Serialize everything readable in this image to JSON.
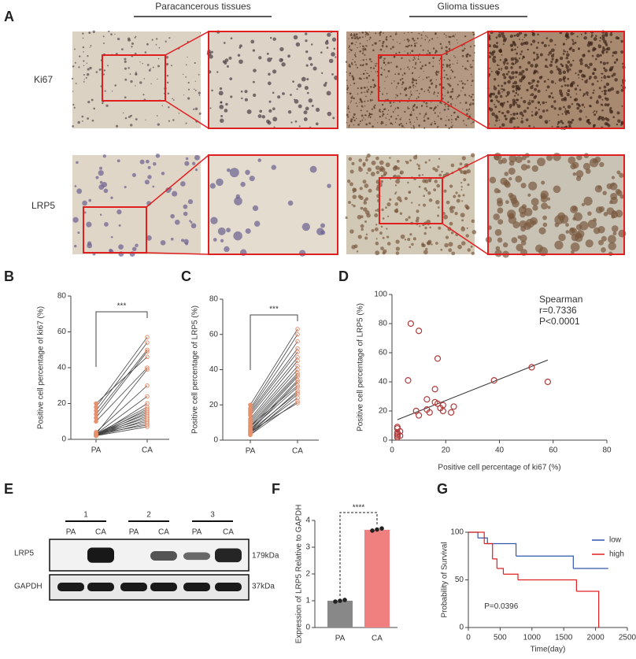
{
  "panel_labels": [
    "A",
    "B",
    "C",
    "D",
    "E",
    "F",
    "G"
  ],
  "panel_a": {
    "columns": [
      "Paracancerous tissues",
      "Glioma tissues"
    ],
    "rows": [
      "Ki67",
      "LRP5"
    ]
  },
  "panel_e": {
    "groups": [
      "1",
      "2",
      "3"
    ],
    "lanes": [
      "PA",
      "CA",
      "PA",
      "CA",
      "PA",
      "CA"
    ],
    "proteins": [
      "LRP5",
      "GAPDH"
    ],
    "sizes": [
      "179kDa",
      "37kDa"
    ]
  },
  "chart_data": [
    {
      "type": "paired",
      "categories": [
        "PA",
        "CA"
      ],
      "ylabel": "Positive cell percentage of ki67 (%)",
      "ylim": [
        0,
        80
      ],
      "yticks": [
        0,
        20,
        40,
        60,
        80
      ],
      "annotation": "***",
      "color": "#e8906c",
      "line_color": "#444444",
      "pairs": [
        [
          18,
          57
        ],
        [
          16,
          54
        ],
        [
          14,
          50
        ],
        [
          12,
          49
        ],
        [
          20,
          46
        ],
        [
          10,
          40
        ],
        [
          3,
          39
        ],
        [
          4,
          30
        ],
        [
          3,
          24
        ],
        [
          2,
          20
        ],
        [
          3,
          18
        ],
        [
          2,
          17
        ],
        [
          3,
          16
        ],
        [
          2,
          15
        ],
        [
          3,
          14
        ],
        [
          2,
          13
        ],
        [
          3,
          12
        ],
        [
          2,
          11
        ],
        [
          3,
          10
        ],
        [
          2,
          9
        ],
        [
          3,
          8
        ],
        [
          2,
          7
        ]
      ]
    },
    {
      "type": "paired",
      "categories": [
        "PA",
        "CA"
      ],
      "ylabel": "Positive cell percentage of LRP5 (%)",
      "ylim": [
        0,
        80
      ],
      "yticks": [
        0,
        20,
        40,
        60,
        80
      ],
      "annotation": "***",
      "color": "#e8906c",
      "line_color": "#444444",
      "pairs": [
        [
          20,
          63
        ],
        [
          18,
          60
        ],
        [
          17,
          56
        ],
        [
          16,
          52
        ],
        [
          15,
          50
        ],
        [
          14,
          47
        ],
        [
          12,
          45
        ],
        [
          11,
          42
        ],
        [
          10,
          40
        ],
        [
          9,
          38
        ],
        [
          8,
          37
        ],
        [
          7,
          36
        ],
        [
          6,
          34
        ],
        [
          5,
          33
        ],
        [
          8,
          31
        ],
        [
          6,
          30
        ],
        [
          4,
          28
        ],
        [
          5,
          27
        ],
        [
          3,
          26
        ],
        [
          4,
          24
        ],
        [
          3,
          22
        ],
        [
          5,
          21
        ]
      ]
    },
    {
      "type": "scatter",
      "xlabel": "Positive cell percentage of ki67 (%)",
      "ylabel": "Positive cell percentage of LRP5 (%)",
      "xlim": [
        0,
        80
      ],
      "xticks": [
        0,
        20,
        40,
        60,
        80
      ],
      "ylim": [
        0,
        100
      ],
      "yticks": [
        0,
        20,
        40,
        60,
        80,
        100
      ],
      "color": "#b03a3a",
      "annotations": [
        "Spearman",
        "r=0.7336",
        "P<0.0001"
      ],
      "x": [
        7,
        10,
        6,
        17,
        16,
        9,
        10,
        13,
        13,
        14,
        16,
        17,
        18,
        19,
        19,
        22,
        23,
        38,
        52,
        58,
        2,
        2,
        2,
        2,
        3,
        2,
        3,
        2
      ],
      "values": [
        80,
        75,
        41,
        56,
        35,
        20,
        17,
        21,
        28,
        19,
        26,
        25,
        22,
        24,
        20,
        19,
        23,
        41,
        50,
        40,
        2,
        3,
        4,
        5,
        6,
        8,
        3,
        9
      ],
      "fit": {
        "x": [
          2,
          58
        ],
        "values": [
          14,
          55
        ]
      }
    },
    {
      "type": "bar",
      "categories": [
        "PA",
        "CA"
      ],
      "values": [
        1.0,
        3.65
      ],
      "colors": [
        "#888888",
        "#f08080"
      ],
      "ylabel": "Expression of LRP5 Relative to GAPDH",
      "ylim": [
        0,
        4
      ],
      "yticks": [
        0,
        1,
        2,
        3,
        4
      ],
      "annotation": "****",
      "points": [
        [
          0.97,
          1.0,
          1.03
        ],
        [
          3.62,
          3.66,
          3.7
        ]
      ]
    },
    {
      "type": "survival",
      "xlabel": "Time(day)",
      "ylabel": "Probability of Survival",
      "xlim": [
        0,
        2500
      ],
      "xticks": [
        0,
        500,
        1000,
        1500,
        2000,
        2500
      ],
      "ylim": [
        0,
        100
      ],
      "yticks": [
        0,
        50,
        100
      ],
      "annotation": "P=0.0396",
      "legend": "upper right",
      "series": [
        {
          "name": "low",
          "color": "#3355aa",
          "x": [
            0,
            150,
            300,
            750,
            1650,
            2200
          ],
          "values": [
            100,
            94,
            88,
            75,
            62,
            62
          ]
        },
        {
          "name": "high",
          "color": "#e02020",
          "x": [
            0,
            250,
            380,
            450,
            550,
            780,
            1700,
            2050
          ],
          "values": [
            100,
            88,
            72,
            62,
            56,
            50,
            38,
            0
          ]
        }
      ]
    }
  ]
}
